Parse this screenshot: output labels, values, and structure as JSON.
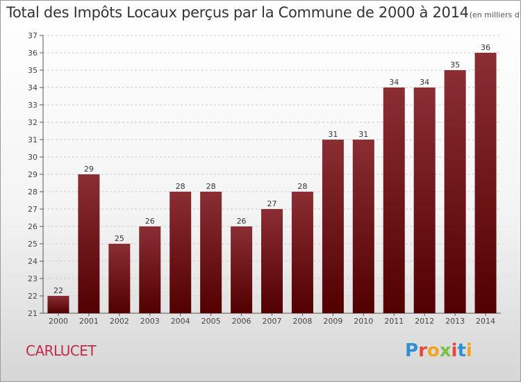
{
  "title": "Total des Impôts Locaux perçus par la Commune de 2000 à 2014",
  "unit": "(en milliers d'€)",
  "commune": "CARLUCET",
  "logo": {
    "letters": [
      "P",
      "r",
      "o",
      "x",
      "i",
      "t",
      "i"
    ],
    "colors": [
      "#2f8fd4",
      "#e8463a",
      "#f0a422",
      "#7ac143",
      "#e8463a",
      "#2f8fd4",
      "#f0a422"
    ]
  },
  "colors": {
    "bar_dark": "#520000",
    "bar_light": "#8a2e34",
    "axis": "#555555",
    "grid": "#cccccc"
  },
  "chart_data": {
    "type": "bar",
    "title": "Total des Impôts Locaux perçus par la Commune de 2000 à 2014",
    "xlabel": "",
    "ylabel": "(en milliers d'€)",
    "categories": [
      "2000",
      "2001",
      "2002",
      "2003",
      "2004",
      "2005",
      "2006",
      "2007",
      "2008",
      "2009",
      "2010",
      "2011",
      "2012",
      "2013",
      "2014"
    ],
    "values": [
      22,
      29,
      25,
      26,
      28,
      28,
      26,
      27,
      28,
      31,
      31,
      34,
      34,
      35,
      36
    ],
    "ylim": [
      21,
      37
    ],
    "yticks": [
      21,
      22,
      23,
      24,
      25,
      26,
      27,
      28,
      29,
      30,
      31,
      32,
      33,
      34,
      35,
      36,
      37
    ],
    "grid": true
  }
}
